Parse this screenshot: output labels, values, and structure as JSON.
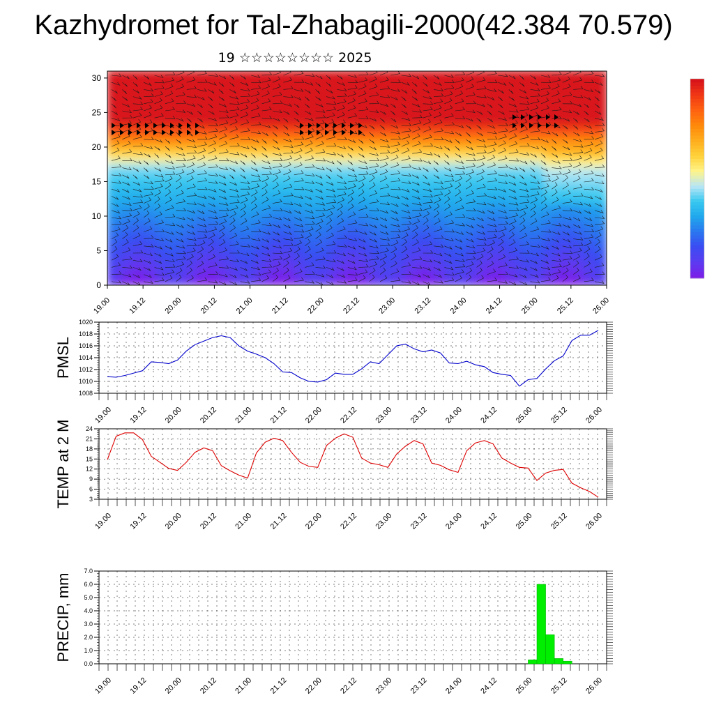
{
  "title": "Kazhydromet for Tal-Zhabagili-2000(42.384 70.579)",
  "subtitle": "19 ☆☆☆☆☆☆☆☆ 2025",
  "x_ticks": [
    "19.00",
    "19.12",
    "20.00",
    "20.12",
    "21.00",
    "21.12",
    "22.00",
    "22.12",
    "23.00",
    "23.12",
    "24.00",
    "24.12",
    "25.00",
    "25.12",
    "26.00"
  ],
  "chart_data": [
    {
      "type": "heatmap",
      "name": "cross-section",
      "y_ticks": [
        "0",
        "5",
        "10",
        "15",
        "20",
        "25",
        "30"
      ],
      "ylim": [
        0,
        31
      ],
      "colorbar": [
        "#7a1fe8",
        "#5a3cf0",
        "#3a4cf2",
        "#2a78f0",
        "#20a8ec",
        "#38c8f0",
        "#b8e6f5",
        "#fff48a",
        "#ffd23a",
        "#ffae1e",
        "#ff8a0a",
        "#ff6410",
        "#f23a14",
        "#d8141a"
      ],
      "has_wind_barbs": true
    },
    {
      "type": "line",
      "name": "PMSL",
      "ylabel": "PMSL",
      "y_ticks": [
        "1008",
        "1010",
        "1012",
        "1014",
        "1016",
        "1018",
        "1020"
      ],
      "ylim": [
        1008,
        1020
      ],
      "color": "#0000cc",
      "x": [
        0,
        3,
        6,
        9,
        12,
        15,
        18,
        21,
        24,
        27,
        30,
        33,
        36,
        39,
        42,
        45,
        48,
        51,
        54,
        57,
        60,
        63,
        66,
        69,
        72,
        75,
        78,
        81,
        84,
        87,
        90,
        93,
        96,
        99,
        102,
        105,
        108,
        111,
        114,
        117,
        120,
        123,
        126,
        129,
        132,
        135,
        138,
        141,
        144,
        147,
        150,
        153,
        156,
        159,
        162,
        165,
        168
      ],
      "values": [
        1010.8,
        1010.7,
        1011.0,
        1011.4,
        1011.8,
        1013.3,
        1013.2,
        1013.0,
        1013.6,
        1015.1,
        1016.2,
        1016.8,
        1017.4,
        1017.7,
        1017.4,
        1016.0,
        1015.1,
        1014.6,
        1014.0,
        1013.0,
        1011.6,
        1011.5,
        1010.6,
        1010.0,
        1009.9,
        1010.3,
        1011.4,
        1011.2,
        1011.2,
        1012.1,
        1013.3,
        1013.0,
        1014.5,
        1016.0,
        1016.3,
        1015.5,
        1015.0,
        1015.3,
        1014.8,
        1013.1,
        1013.0,
        1013.4,
        1012.8,
        1012.5,
        1011.5,
        1011.2,
        1011.0,
        1009.2,
        1010.3,
        1010.5,
        1012.1,
        1013.5,
        1014.3,
        1016.9,
        1017.8,
        1017.8,
        1018.6
      ]
    },
    {
      "type": "line",
      "name": "TEMP at 2 M",
      "ylabel": "TEMP at 2 M",
      "y_ticks": [
        "3",
        "6",
        "9",
        "12",
        "15",
        "18",
        "21",
        "24"
      ],
      "ylim": [
        3,
        24
      ],
      "color": "#dd0000",
      "x": [
        0,
        3,
        6,
        9,
        12,
        15,
        18,
        21,
        24,
        27,
        30,
        33,
        36,
        39,
        42,
        45,
        48,
        51,
        54,
        57,
        60,
        63,
        66,
        69,
        72,
        75,
        78,
        81,
        84,
        87,
        90,
        93,
        96,
        99,
        102,
        105,
        108,
        111,
        114,
        117,
        120,
        123,
        126,
        129,
        132,
        135,
        138,
        141,
        144,
        147,
        150,
        153,
        156,
        159,
        162,
        165,
        168
      ],
      "values": [
        14.8,
        21.8,
        22.8,
        22.8,
        20.8,
        15.8,
        14.0,
        12.2,
        11.6,
        14.0,
        17.0,
        18.3,
        17.5,
        13.0,
        11.5,
        10.2,
        9.3,
        16.8,
        20.0,
        21.2,
        20.5,
        17.0,
        14.0,
        12.8,
        12.5,
        19.0,
        21.2,
        22.5,
        21.5,
        15.3,
        13.8,
        13.3,
        12.5,
        16.5,
        18.8,
        20.5,
        19.5,
        13.8,
        13.1,
        11.8,
        11.0,
        17.5,
        19.8,
        20.5,
        19.5,
        15.3,
        13.8,
        12.5,
        12.3,
        8.6,
        10.8,
        11.6,
        11.9,
        7.8,
        6.4,
        5.3,
        3.6
      ]
    },
    {
      "type": "bar",
      "name": "PRECIP, mm",
      "ylabel": "PRECIP, mm",
      "y_ticks": [
        "0.0",
        "1.0",
        "2.0",
        "3.0",
        "4.0",
        "5.0",
        "6.0",
        "7.0"
      ],
      "ylim": [
        0,
        7
      ],
      "color": "#00ee00",
      "bar_x_start": [
        144,
        147,
        150,
        153,
        156
      ],
      "values": [
        0.3,
        6.0,
        2.2,
        0.4,
        0.2
      ]
    }
  ]
}
